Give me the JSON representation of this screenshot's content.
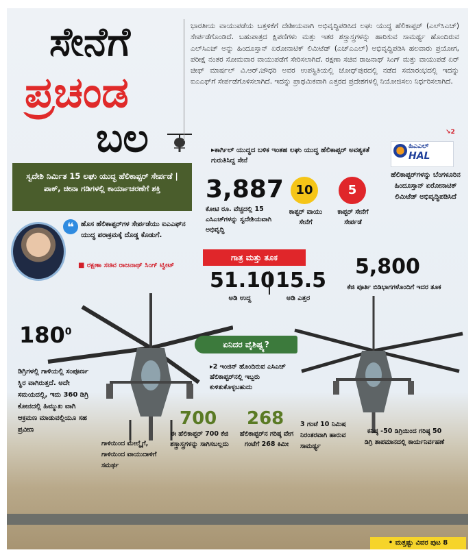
{
  "headline": {
    "line1": "ಸೇನೆಗೆ",
    "line2": "ಪ್ರಚಂಡ",
    "line3": "ಬಲ"
  },
  "lead_paragraph": "ಭಾರತೀಯ ವಾಯುಪಡೆಯ ಬತ್ತಳಿಕೆಗೆ ದೇಶೀಯವಾಗಿ ಅಭಿವೃದ್ಧಿಪಡಿಸಿದ ಲಘು ಯುದ್ಧ ಹೆಲಿಕಾಪ್ಟರ್ (ಎಲ್‌ಸಿಎಚ್) ಸೇರ್ಪಡೆಗೊಂಡಿದೆ. ಬಹುಪಾತ್ರದ ಕ್ಷಿಪಣಿಗಳು ಮತ್ತು ಇತರ ಶಸ್ತ್ರಾಸ್ತ್ರಗಳನ್ನು ಹಾರಿಸುವ ಸಾಮರ್ಥ್ಯ ಹೊಂದಿರುವ ಎಲ್‌ಸಿಎಚ್ ಅನ್ನು ಹಿಂದೂಸ್ತಾನ್ ಏರೋನಾಟಿಕ್ ಲಿಮಿಟೆಡ್ (ಎಚ್‌ಎಎಲ್) ಅಭಿವೃದ್ಧಿಪಡಿಸಿ ಹಲವಾರು ಪ್ರಯೋಗ, ಪರೀಕ್ಷೆ ನಂತರ ಸೋಮವಾರ ವಾಯುಪಡೆಗೆ ಸೇರಿಸಲಾಗಿದೆ. ರಕ್ಷಣಾ ಸಚಿವ ರಾಜನಾಥ್ ಸಿಂಗ್ ಮತ್ತು ವಾಯುಪಡೆ ಏರ್ ಚೀಫ್ ಮಾರ್ಷಲ್ ವಿ.ಆರ್.ಚೌಧರಿ ಅವರ ಉಪಸ್ಥಿತಿಯಲ್ಲಿ ಜೋಧ್‌ಪುರದಲ್ಲಿ ನಡೆದ ಸಮಾರಂಭದಲ್ಲಿ ಇದನ್ನು ಐಎಎಫ್‌ಗೆ ಸೇರ್ಪಡೆಗೊಳಿಸಲಾಗಿದೆ. ಇದನ್ನು ಪ್ರಾಥಮಿಕವಾಗಿ ಎತ್ತರದ ಪ್ರದೇಶಗಳಲ್ಲಿ ನಿಯೋಜಿಸಲು ನಿರ್ಧರಿಸಲಾಗಿದೆ.",
  "lead_continue": "2",
  "green_box": "ಸ್ವದೇಶಿ ನಿರ್ಮಿತ 15 ಲಘು ಯುದ್ಧ ಹೆಲಿಕಾಪ್ಟರ್ ಸೇರ್ಪಡೆ | ಪಾಕ್, ಚೀನಾ ಗಡಿಗಳಲ್ಲಿ ಕಾರ್ಯಾಚರಣೆಗೆ ಶಕ್ತಿ",
  "quote": {
    "mark": "❝",
    "text": "ಹೊಸ ಹೆಲಿಕಾಪ್ಟರ್‌ಗಳ ಸೇರ್ಪಡೆಯು ಐಎಎಫ್‌ನ ಯುದ್ಧ ಪರಾಕ್ರಮಕ್ಕೆ ದೊಡ್ಡ ಕೊಡುಗೆ.",
    "attribution": "■ ರಕ್ಷಣಾ ಸಚಿವ ರಾಜನಾಥ್ ಸಿಂಗ್ ಟ್ವೀಟ್"
  },
  "kargil_note": "▸ಕಾರ್ಗಿಲ್ ಯುದ್ಧದ ಬಳಿಕ ಇಂತಹ ಲಘು ಯುದ್ಧ ಹೆಲಿಕಾಪ್ಟರ್ ಅವಶ್ಯಕತೆ ಗುರುತಿಸಿದ್ದ ಸೇನೆ",
  "stat_cost": {
    "value": "3,887",
    "caption": "ಕೋಟಿ ರೂ. ವೆಚ್ಚದಲ್ಲಿ 15 ಎಸಿಎಚ್‌ಗಳನ್ನು ಸ್ವದೇಶಿಯವಾಗಿ ಅಭಿವೃದ್ಧಿ"
  },
  "stat_air": {
    "value": "10",
    "caption": "ಕಾಪ್ಟರ್ ವಾಯು ಸೇನೆಗೆ",
    "color": "#f5c518"
  },
  "stat_army": {
    "value": "5",
    "caption": "ಕಾಪ್ಟರ್ ಸೇನೆಗೆ ಸೇರ್ಪಡೆ",
    "color": "#e0262a"
  },
  "hal": {
    "logo_text": "ಹಿಎಎಲ್",
    "logo_brand": "HAL",
    "caption": "ಹೆಲಿಕಾಪ್ಟರ್‌ಗಳನ್ನು ಬೆಂಗಳೂರಿನ ಹಿಂದೂಸ್ತಾನ್ ಏರೋನಾಟಿಕ್ ಲಿಮಿಟೆಡ್ ಅಭಿವೃದ್ಧಿಪಡಿಸಿದೆ"
  },
  "size_weight": {
    "heading": "ಗಾತ್ರ ಮತ್ತು ತೂಕ",
    "length_value": "51.10",
    "length_caption": "ಅಡಿ ಉದ್ದ",
    "height_value": "15.5",
    "height_caption": "ಅಡಿ ಎತ್ತರ"
  },
  "weight": {
    "value": "5,800",
    "caption": "ಕೆಜಿ ಪೂರ್ತಿ ಬಿಡಿಭಾಗಗಳೊಂದಿಗೆ ಇದರ ತೂಕ"
  },
  "rotation": {
    "value": "180",
    "unit": "0",
    "caption": "ಡಿಗ್ರಿಗಳಲ್ಲಿ ಗಾಳಿಯಲ್ಲಿ ಸಂಪೂರ್ಣ ಸ್ಥಿರ ವಾಗಿರುತ್ತದೆ. ಅದೇ ಸಮಯದಲ್ಲಿ, ಇದು 360 ಡಿಗ್ರಿ ಕೋನದಲ್ಲಿ ಹಿಮ್ಮುಖ ವಾಗಿ ಆಕ್ರಮಣ ಮಾಡುವಲ್ಲಿಯೂ ಸಹ ಪ್ರವೀಣ"
  },
  "wind_caption": "ಗಾಳಿಯಿಂದ ಮೇಲ್ಮೈಗೆ, ಗಾಳಿಯಿಂದ ವಾಯುದಾಳಿಗೆ ಸಮರ್ಥ",
  "features": {
    "heading": "ಏನಿದರ ವೈಶಿಷ್ಟ್ಯ?",
    "engine": "▸2 ಇಂಜಿನ್ ಹೊಂದಿರುವ ಎಸಿಎಚ್ ಹೆಲಿಕಾಪ್ಟರ್‌ನಲ್ಲಿ ಇಬ್ಬರು ಕುಳಿತುಕೊಳ್ಳಬಹುದು"
  },
  "stat_700": {
    "value": "700",
    "caption": "ಈ ಹೆಲಿಕಾಪ್ಟರ್ 700 ಕೆಜಿ ಶಸ್ತ್ರಾಸ್ತ್ರಗಳನ್ನು ಸಾಗಿಸಬಲ್ಲದು"
  },
  "stat_268": {
    "value": "268",
    "caption": "ಹೆಲಿಕಾಪ್ಟರ್‌ನ ಗರಿಷ್ಠ ವೇಗ ಗಂಟೆಗೆ 268 ಕಿಮೀ"
  },
  "endurance": "3 ಗಂಟೆ 10 ನಿಮಿಷ ನಿರಂತರವಾಗಿ ಹಾರುವ ಸಾಮರ್ಥ್ಯ",
  "temperature": "ಕನಿಷ್ಠ -50 ಡಿಗ್ರಿಯಿಂದ ಗರಿಷ್ಠ 50 ಡಿಗ್ರಿ ತಾಪಮಾನದಲ್ಲಿ ಕಾರ್ಯನಿರ್ವಹಣೆ",
  "footer": "• ಮತ್ತಷ್ಟು ವಿವರ ಪುಟ 8",
  "colors": {
    "accent_red": "#e02a2a",
    "olive": "#4a5d2c",
    "green_pill": "#3c7a3c",
    "stat_green": "#5a7a24"
  }
}
